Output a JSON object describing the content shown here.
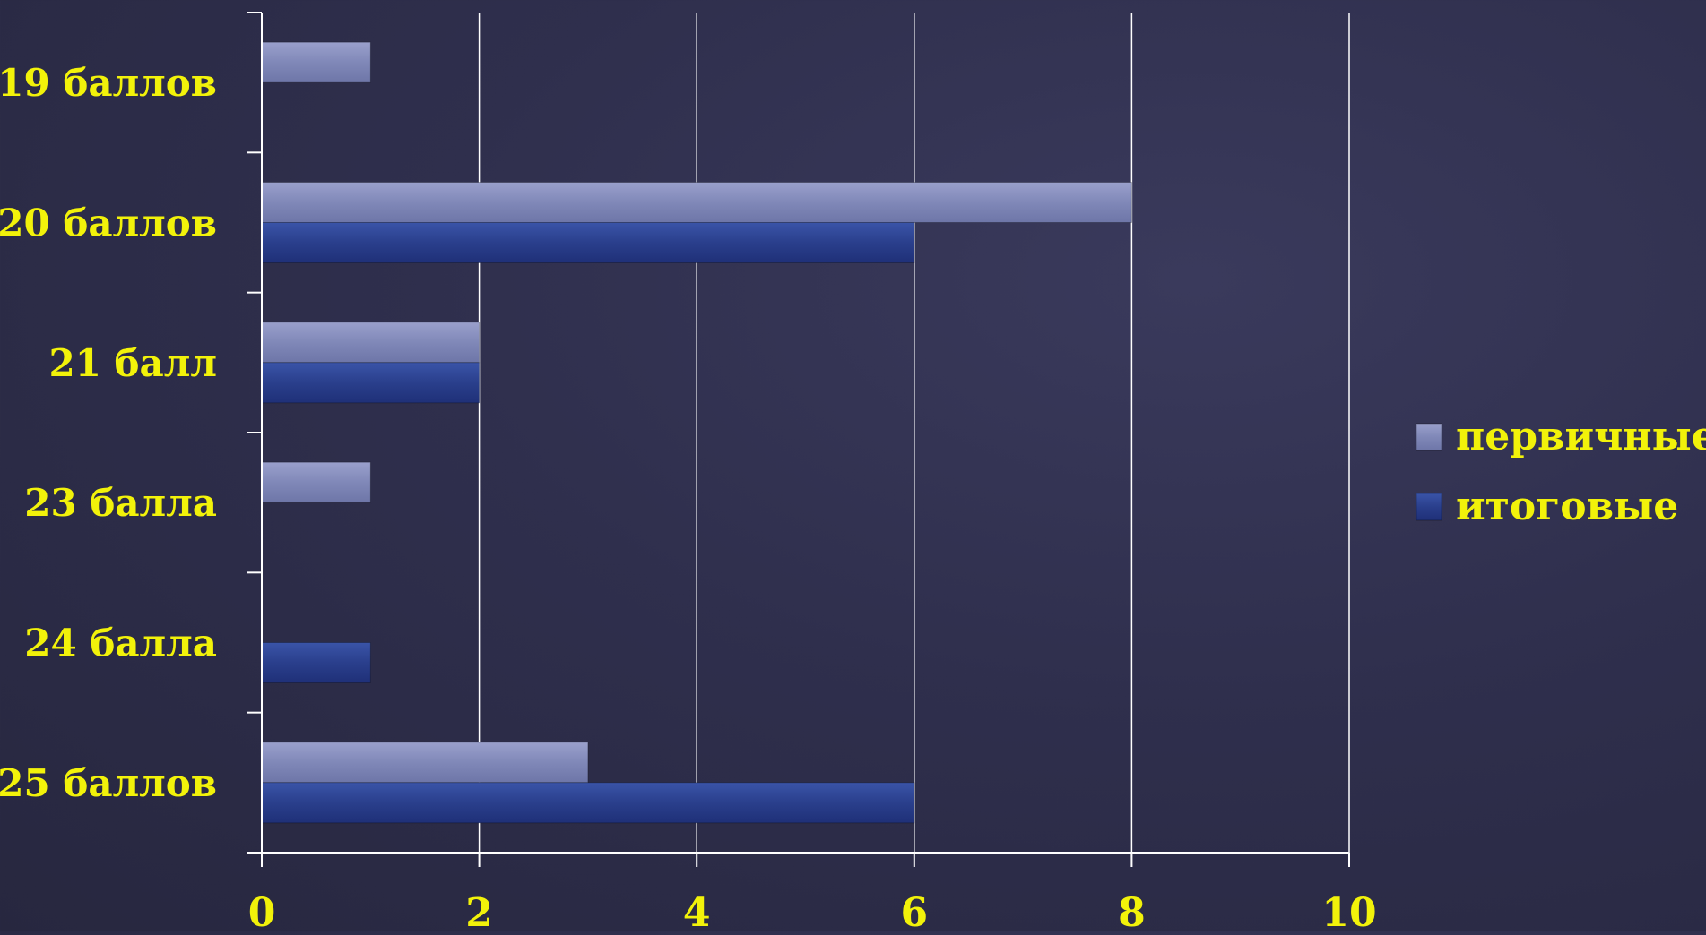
{
  "chart_data": {
    "type": "bar",
    "orientation": "horizontal",
    "categories": [
      "19 баллов",
      "20 баллов",
      "21 балл",
      "23 балла",
      "24 балла",
      "25 баллов"
    ],
    "series": [
      {
        "name": "первичные",
        "values": [
          1,
          8,
          2,
          1,
          0,
          3
        ],
        "color": "#8088b8"
      },
      {
        "name": "итоговые",
        "values": [
          0,
          6,
          2,
          0,
          1,
          6
        ],
        "color": "#2a3f8c"
      }
    ],
    "xticks": [
      "0",
      "2",
      "4",
      "6",
      "8",
      "10"
    ],
    "xlim": [
      0,
      10
    ],
    "grid": true,
    "legend_position": "right",
    "title": "",
    "xlabel": "",
    "ylabel": ""
  },
  "colors": {
    "text": "#f2f20a",
    "grid": "#ffffff"
  }
}
